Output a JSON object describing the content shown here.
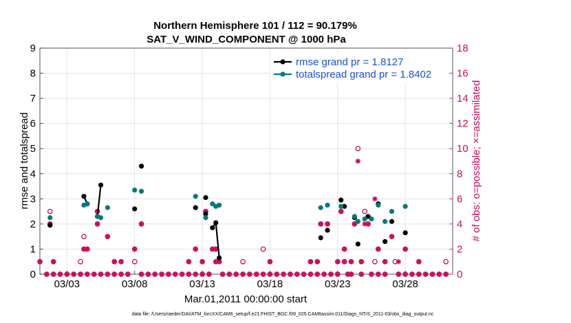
{
  "chart_data": {
    "type": "line",
    "title": "Northern Hemisphere 101 / 112 = 90.179%",
    "subtitle": "SAT_V_WIND_COMPONENT @ 1000 hPa",
    "ylabel": "rmse and totalspread",
    "ylabel_right": "# of obs: o=possible; ×=assimilated",
    "xlabel": "Mar.01,2011 00:00:00 start",
    "footnote": "data file: /Users/raeder/DAI/ATM_forcXX/CAM6_setup/f.e21.FHIST_BGC.f09_025.CAM6assim.011/Diags_NTrS_2011-03/obs_diag_output.nc",
    "xlim": [
      1,
      31.5
    ],
    "ylim": [
      0,
      9
    ],
    "ylim_right": [
      0,
      18
    ],
    "yticks": [
      "0",
      "1",
      "2",
      "3",
      "4",
      "5",
      "6",
      "7",
      "8",
      "9"
    ],
    "yticks_right": [
      "0",
      "2",
      "4",
      "6",
      "8",
      "10",
      "12",
      "14",
      "16",
      "18"
    ],
    "xticks": [
      {
        "x": 3,
        "label": "03/03"
      },
      {
        "x": 8,
        "label": "03/08"
      },
      {
        "x": 13,
        "label": "03/13"
      },
      {
        "x": 18,
        "label": "03/18"
      },
      {
        "x": 23,
        "label": "03/23"
      },
      {
        "x": 28,
        "label": "03/28"
      }
    ],
    "grid": true,
    "legend_position": "top-right",
    "series": [
      {
        "name": "rmse",
        "legend": "rmse grand pr = 1.8127",
        "color": "#000000",
        "points": [
          [
            1.75,
            1.95
          ],
          [
            4.25,
            3.1
          ],
          [
            4.5,
            2.8
          ],
          [
            5.25,
            2.3
          ],
          [
            5.5,
            3.55
          ],
          [
            8,
            2.6
          ],
          [
            8.5,
            4.3
          ],
          [
            12.5,
            2.65
          ],
          [
            13.25,
            3.05
          ],
          [
            13.25,
            2.4
          ],
          [
            13.75,
            1.85
          ],
          [
            14,
            2.05
          ],
          [
            14.25,
            0.65
          ],
          [
            21.75,
            1.45
          ],
          [
            22.25,
            1.75
          ],
          [
            23.25,
            2.95
          ],
          [
            23.5,
            2.7
          ],
          [
            24.25,
            2.25
          ],
          [
            24.5,
            1.2
          ],
          [
            25.25,
            2.3
          ],
          [
            26,
            2.8
          ],
          [
            26.5,
            1.3
          ],
          [
            27,
            2.1
          ],
          [
            28,
            1.65
          ]
        ],
        "segments": [
          [
            [
              4.25,
              3.1
            ],
            [
              4.5,
              2.8
            ]
          ],
          [
            [
              5.25,
              2.3
            ],
            [
              5.5,
              3.55
            ]
          ],
          [
            [
              13.75,
              1.85
            ],
            [
              14,
              2.05
            ],
            [
              14.25,
              0.65
            ]
          ]
        ]
      },
      {
        "name": "totalspread",
        "legend": "totalspread grand pr = 1.8402",
        "color": "#007a7a",
        "points": [
          [
            1.75,
            2.25
          ],
          [
            4.25,
            2.75
          ],
          [
            4.5,
            2.8
          ],
          [
            5.25,
            2.3
          ],
          [
            5.5,
            2.25
          ],
          [
            6,
            2.65
          ],
          [
            8,
            3.35
          ],
          [
            8.5,
            3.3
          ],
          [
            12.5,
            3.1
          ],
          [
            13.25,
            2.25
          ],
          [
            13.75,
            2.8
          ],
          [
            14,
            2.7
          ],
          [
            14.25,
            2.75
          ],
          [
            21.75,
            2.65
          ],
          [
            22.25,
            2.75
          ],
          [
            23.25,
            2.7
          ],
          [
            24.25,
            2.3
          ],
          [
            24.5,
            2.1
          ],
          [
            25,
            2.2
          ],
          [
            25.5,
            2.2
          ],
          [
            26,
            2.75
          ],
          [
            26.5,
            2.1
          ],
          [
            27,
            2.5
          ],
          [
            28,
            2.7
          ]
        ]
      }
    ],
    "obs_possible": {
      "name": "possible",
      "color": "#cc0a5a",
      "points": [
        [
          1,
          1
        ],
        [
          1.5,
          0
        ],
        [
          1.75,
          4
        ],
        [
          1.75,
          5
        ],
        [
          2,
          1
        ],
        [
          2,
          0
        ],
        [
          2.5,
          0
        ],
        [
          3,
          0
        ],
        [
          3.5,
          0
        ],
        [
          4,
          1
        ],
        [
          4,
          0
        ],
        [
          4.25,
          3
        ],
        [
          4.25,
          2
        ],
        [
          4.5,
          2
        ],
        [
          4.5,
          0
        ],
        [
          5,
          0
        ],
        [
          5.25,
          5
        ],
        [
          5.25,
          4
        ],
        [
          5.5,
          0
        ],
        [
          6,
          3
        ],
        [
          6,
          0
        ],
        [
          6.5,
          1
        ],
        [
          6.5,
          0
        ],
        [
          7,
          1
        ],
        [
          7,
          0
        ],
        [
          7.5,
          0
        ],
        [
          8,
          2
        ],
        [
          8,
          1
        ],
        [
          8.5,
          4
        ],
        [
          8.5,
          0
        ],
        [
          9,
          0
        ],
        [
          9.5,
          0
        ],
        [
          10,
          0
        ],
        [
          10.5,
          0
        ],
        [
          11,
          0
        ],
        [
          11.5,
          0
        ],
        [
          12,
          1
        ],
        [
          12,
          0
        ],
        [
          12.5,
          2
        ],
        [
          12.5,
          0
        ],
        [
          13,
          1
        ],
        [
          13,
          0
        ],
        [
          13.25,
          5
        ],
        [
          13.5,
          0
        ],
        [
          13.75,
          2
        ],
        [
          14,
          2
        ],
        [
          14,
          1
        ],
        [
          14.25,
          1
        ],
        [
          14.5,
          0
        ],
        [
          15,
          0
        ],
        [
          15.5,
          0
        ],
        [
          16,
          1
        ],
        [
          16,
          0
        ],
        [
          16.5,
          0
        ],
        [
          17,
          0
        ],
        [
          17.5,
          2
        ],
        [
          17.5,
          0
        ],
        [
          18,
          1
        ],
        [
          18,
          0
        ],
        [
          18.5,
          0
        ],
        [
          19,
          0
        ],
        [
          19.5,
          0
        ],
        [
          20,
          0
        ],
        [
          20.5,
          0
        ],
        [
          21,
          1
        ],
        [
          21,
          0
        ],
        [
          21.5,
          1
        ],
        [
          21.5,
          0
        ],
        [
          21.75,
          4
        ],
        [
          22,
          0
        ],
        [
          22.25,
          4
        ],
        [
          22.5,
          0
        ],
        [
          23,
          1
        ],
        [
          23,
          0
        ],
        [
          23.25,
          5
        ],
        [
          23.5,
          2
        ],
        [
          23.5,
          1
        ],
        [
          23.75,
          0
        ],
        [
          24,
          1
        ],
        [
          24,
          0
        ],
        [
          24.25,
          4
        ],
        [
          24.5,
          10
        ],
        [
          24.75,
          1
        ],
        [
          24.75,
          0
        ],
        [
          25,
          5
        ],
        [
          25.25,
          4
        ],
        [
          25.5,
          0
        ],
        [
          25.75,
          1
        ],
        [
          26,
          2
        ],
        [
          26,
          0
        ],
        [
          26.5,
          1
        ],
        [
          26.5,
          0
        ],
        [
          27,
          3
        ],
        [
          27.25,
          1
        ],
        [
          27.5,
          0
        ],
        [
          28,
          2
        ],
        [
          28,
          0
        ],
        [
          28.5,
          0
        ],
        [
          29,
          1
        ],
        [
          29,
          0
        ],
        [
          29.5,
          0
        ],
        [
          30,
          0
        ],
        [
          30.5,
          0
        ],
        [
          31,
          1
        ],
        [
          31,
          0
        ]
      ]
    },
    "obs_assimilated": {
      "name": "assimilated",
      "color": "#cc0a5a",
      "points": [
        [
          1,
          1
        ],
        [
          1.5,
          0
        ],
        [
          1.75,
          4
        ],
        [
          2,
          1
        ],
        [
          2,
          0
        ],
        [
          2.5,
          0
        ],
        [
          3,
          0
        ],
        [
          3.5,
          0
        ],
        [
          4,
          0
        ],
        [
          4.25,
          2
        ],
        [
          4.5,
          2
        ],
        [
          4.5,
          0
        ],
        [
          5,
          0
        ],
        [
          5.25,
          5
        ],
        [
          5.25,
          4
        ],
        [
          5.5,
          0
        ],
        [
          6,
          3
        ],
        [
          6,
          0
        ],
        [
          6.5,
          1
        ],
        [
          6.5,
          0
        ],
        [
          7,
          1
        ],
        [
          7,
          0
        ],
        [
          7.5,
          0
        ],
        [
          8,
          2
        ],
        [
          8.5,
          4
        ],
        [
          8.5,
          0
        ],
        [
          9,
          0
        ],
        [
          9.5,
          0
        ],
        [
          10,
          0
        ],
        [
          10.5,
          0
        ],
        [
          11,
          0
        ],
        [
          11.5,
          0
        ],
        [
          12,
          1
        ],
        [
          12,
          0
        ],
        [
          12.5,
          2
        ],
        [
          12.5,
          0
        ],
        [
          13,
          1
        ],
        [
          13,
          0
        ],
        [
          13.25,
          5
        ],
        [
          13.5,
          0
        ],
        [
          13.75,
          2
        ],
        [
          14,
          2
        ],
        [
          14,
          1
        ],
        [
          14.25,
          1
        ],
        [
          14.5,
          0
        ],
        [
          15,
          0
        ],
        [
          15.5,
          0
        ],
        [
          16,
          0
        ],
        [
          16.5,
          0
        ],
        [
          17,
          0
        ],
        [
          17.5,
          0
        ],
        [
          18,
          1
        ],
        [
          18,
          0
        ],
        [
          18.5,
          0
        ],
        [
          19,
          0
        ],
        [
          19.5,
          0
        ],
        [
          20,
          0
        ],
        [
          20.5,
          0
        ],
        [
          21,
          1
        ],
        [
          21,
          0
        ],
        [
          21.5,
          1
        ],
        [
          21.5,
          0
        ],
        [
          21.75,
          4
        ],
        [
          22,
          0
        ],
        [
          22.25,
          4
        ],
        [
          22.5,
          0
        ],
        [
          23,
          1
        ],
        [
          23,
          0
        ],
        [
          23.25,
          5
        ],
        [
          23.5,
          2
        ],
        [
          23.5,
          1
        ],
        [
          23.75,
          0
        ],
        [
          24,
          1
        ],
        [
          24,
          0
        ],
        [
          24.25,
          4
        ],
        [
          24.5,
          9
        ],
        [
          24.75,
          1
        ],
        [
          24.75,
          0
        ],
        [
          25,
          4
        ],
        [
          25.25,
          4
        ],
        [
          25.5,
          0
        ],
        [
          25.75,
          6
        ],
        [
          26,
          2
        ],
        [
          26,
          0
        ],
        [
          26.5,
          1
        ],
        [
          26.5,
          0
        ],
        [
          27,
          3
        ],
        [
          27.5,
          1
        ],
        [
          27.5,
          0
        ],
        [
          28,
          2
        ],
        [
          28,
          0
        ],
        [
          28.5,
          0
        ],
        [
          29,
          1
        ],
        [
          29,
          0
        ],
        [
          29.5,
          0
        ],
        [
          30,
          0
        ],
        [
          30.5,
          0
        ],
        [
          31,
          0
        ]
      ]
    }
  }
}
